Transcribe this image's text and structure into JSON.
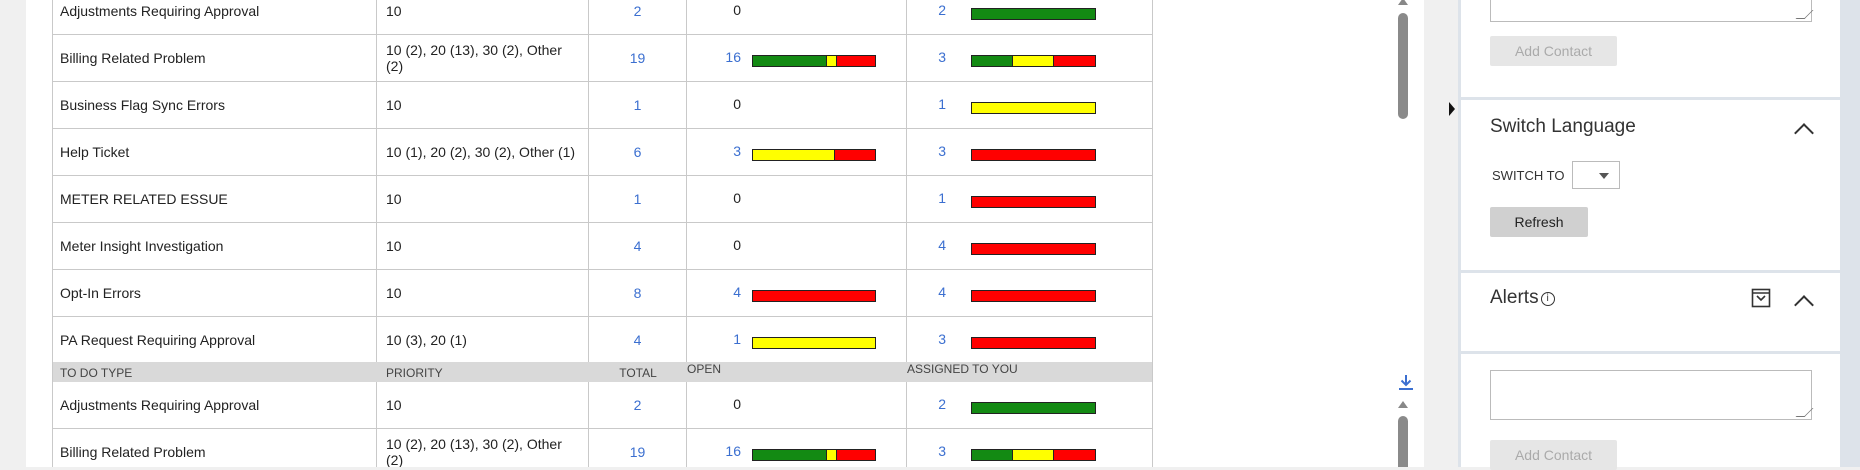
{
  "table": {
    "headers": [
      "TO DO TYPE",
      "PRIORITY",
      "TOTAL",
      "OPEN",
      "ASSIGNED TO YOU"
    ],
    "rows": [
      {
        "type": "Adjustments Requiring Approval",
        "priority": "10",
        "total": "2",
        "open": "0",
        "assigned": "2",
        "open_bar": [],
        "assigned_bar": [
          {
            "color": "#138a13",
            "frac": 1
          }
        ]
      },
      {
        "type": "Billing Related Problem",
        "priority": "10 (2), 20 (13), 30 (2), Other (2)",
        "total": "19",
        "open": "16",
        "assigned": "3",
        "open_bar": [
          {
            "color": "#138a13",
            "frac": 0.61
          },
          {
            "color": "#ffff00",
            "frac": 0.07
          },
          {
            "color": "#ff0000",
            "frac": 0.32
          }
        ],
        "assigned_bar": [
          {
            "color": "#138a13",
            "frac": 0.33
          },
          {
            "color": "#ffff00",
            "frac": 0.33
          },
          {
            "color": "#ff0000",
            "frac": 0.34
          }
        ]
      },
      {
        "type": "Business Flag Sync Errors",
        "priority": "10",
        "total": "1",
        "open": "0",
        "assigned": "1",
        "open_bar": [],
        "assigned_bar": [
          {
            "color": "#ffff00",
            "frac": 1
          }
        ]
      },
      {
        "type": "Help Ticket",
        "priority": "10 (1), 20 (2), 30 (2), Other (1)",
        "total": "6",
        "open": "3",
        "assigned": "3",
        "open_bar": [
          {
            "color": "#ffff00",
            "frac": 0.67
          },
          {
            "color": "#ff0000",
            "frac": 0.33
          }
        ],
        "assigned_bar": [
          {
            "color": "#ff0000",
            "frac": 1
          }
        ]
      },
      {
        "type": "METER RELATED ESSUE",
        "priority": "10",
        "total": "1",
        "open": "0",
        "assigned": "1",
        "open_bar": [],
        "assigned_bar": [
          {
            "color": "#ff0000",
            "frac": 1
          }
        ]
      },
      {
        "type": "Meter Insight Investigation",
        "priority": "10",
        "total": "4",
        "open": "0",
        "assigned": "4",
        "open_bar": [],
        "assigned_bar": [
          {
            "color": "#ff0000",
            "frac": 1
          }
        ]
      },
      {
        "type": "Opt-In Errors",
        "priority": "10",
        "total": "8",
        "open": "4",
        "assigned": "4",
        "open_bar": [
          {
            "color": "#ff0000",
            "frac": 1
          }
        ],
        "assigned_bar": [
          {
            "color": "#ff0000",
            "frac": 1
          }
        ]
      },
      {
        "type": "PA Request Requiring Approval",
        "priority": "10 (3), 20 (1)",
        "total": "4",
        "open": "1",
        "assigned": "3",
        "open_bar": [
          {
            "color": "#ffff00",
            "frac": 1
          }
        ],
        "assigned_bar": [
          {
            "color": "#ff0000",
            "frac": 1
          }
        ]
      }
    ],
    "rows_second": [
      {
        "type": "Adjustments Requiring Approval",
        "priority": "10",
        "total": "2",
        "open": "0",
        "assigned": "2",
        "open_bar": [],
        "assigned_bar": [
          {
            "color": "#138a13",
            "frac": 1
          }
        ]
      },
      {
        "type": "Billing Related Problem",
        "priority": "10 (2), 20 (13), 30 (2), Other (2)",
        "total": "19",
        "open": "16",
        "assigned": "3",
        "open_bar": [
          {
            "color": "#138a13",
            "frac": 0.61
          },
          {
            "color": "#ffff00",
            "frac": 0.07
          },
          {
            "color": "#ff0000",
            "frac": 0.32
          }
        ],
        "assigned_bar": [
          {
            "color": "#138a13",
            "frac": 0.33
          },
          {
            "color": "#ffff00",
            "frac": 0.33
          },
          {
            "color": "#ff0000",
            "frac": 0.34
          }
        ]
      }
    ]
  },
  "sidebar": {
    "add_contact_label": "Add Contact",
    "switch_language": {
      "title": "Switch Language",
      "switch_to_label": "SWITCH TO",
      "selected": "",
      "refresh_label": "Refresh"
    },
    "alerts": {
      "title": "Alerts"
    }
  },
  "icons": {
    "download": "download-icon",
    "info": "info-icon",
    "chevron_up": "chevron-up-icon",
    "inbox": "inbox-icon"
  }
}
